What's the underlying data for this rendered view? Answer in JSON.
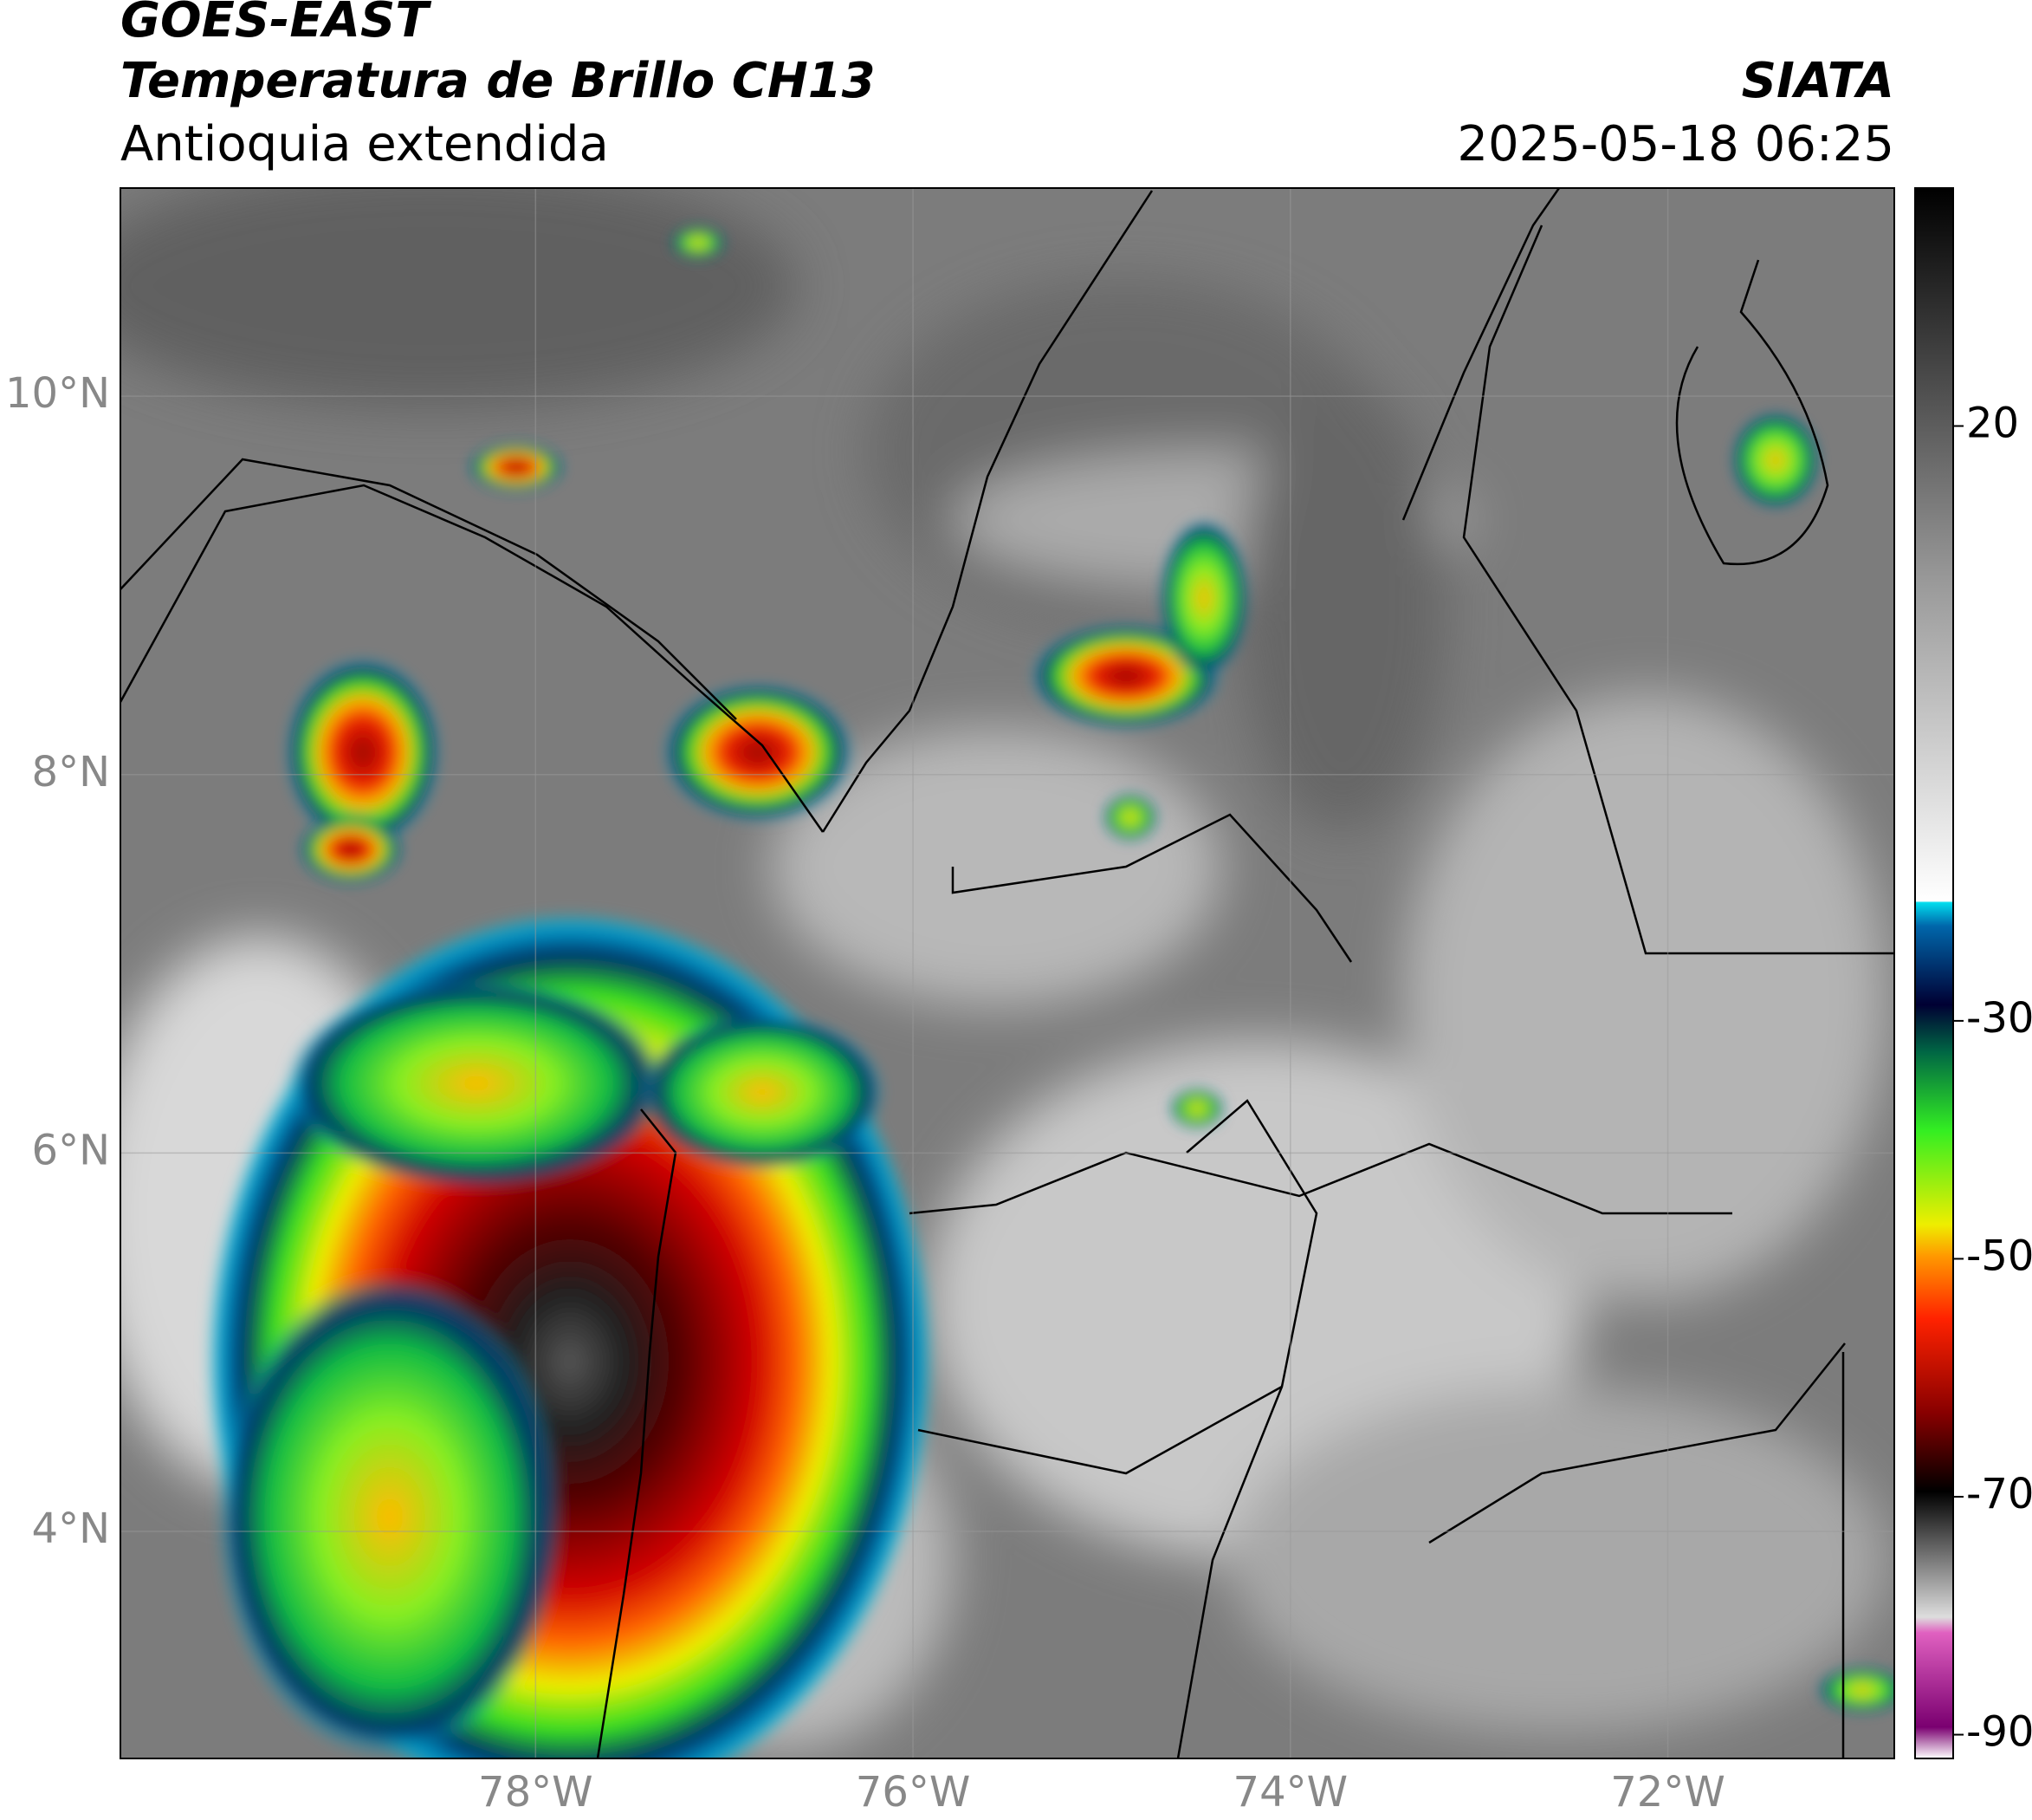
{
  "header": {
    "title": "GOES-EAST",
    "subtitle": "Temperatura de Brillo CH13",
    "region": "Antioquia extendida",
    "source": "SIATA",
    "datetime": "2025-05-18 06:25"
  },
  "map": {
    "xlim": [
      -80.2,
      -70.8
    ],
    "ylim": [
      2.8,
      11.1
    ],
    "grid": true,
    "xticks": [
      {
        "value": -78,
        "label": "78°W"
      },
      {
        "value": -76,
        "label": "76°W"
      },
      {
        "value": -74,
        "label": "74°W"
      },
      {
        "value": -72,
        "label": "72°W"
      }
    ],
    "yticks": [
      {
        "value": 4,
        "label": "4°N"
      },
      {
        "value": 6,
        "label": "6°N"
      },
      {
        "value": 8,
        "label": "8°N"
      },
      {
        "value": 10,
        "label": "10°N"
      }
    ]
  },
  "colorbar": {
    "lim": [
      -92,
      40
    ],
    "ticks": [
      -90,
      -70,
      -50,
      -30,
      20
    ]
  }
}
